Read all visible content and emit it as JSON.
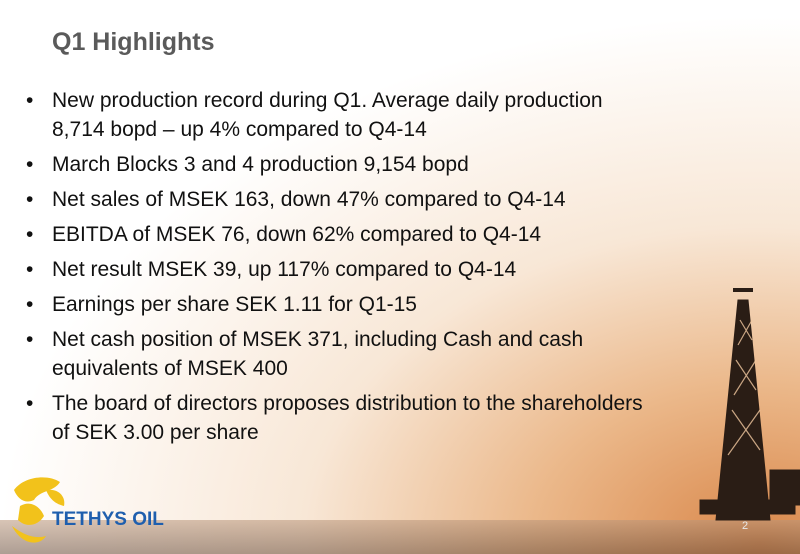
{
  "header": {
    "title": "Q1 Highlights"
  },
  "bullets": [
    [
      "New production record during Q1. Average daily production",
      "8,714 bopd – up 4% compared to Q4-14"
    ],
    [
      "March Blocks 3 and 4 production 9,154 bopd"
    ],
    [
      "Net sales of MSEK 163, down 47% compared to Q4-14"
    ],
    [
      "EBITDA of MSEK 76, down 62% compared to Q4-14"
    ],
    [
      "Net result MSEK 39, up 117% compared to Q4-14"
    ],
    [
      "Earnings per share SEK 1.11 for Q1-15"
    ],
    [
      "Net cash position of MSEK 371, including Cash and cash",
      "equivalents of MSEK 400"
    ],
    [
      "The board of directors proposes distribution to the shareholders",
      "of SEK 3.00 per share"
    ]
  ],
  "footer": {
    "logo": "TETHYS OIL",
    "page": "2"
  }
}
